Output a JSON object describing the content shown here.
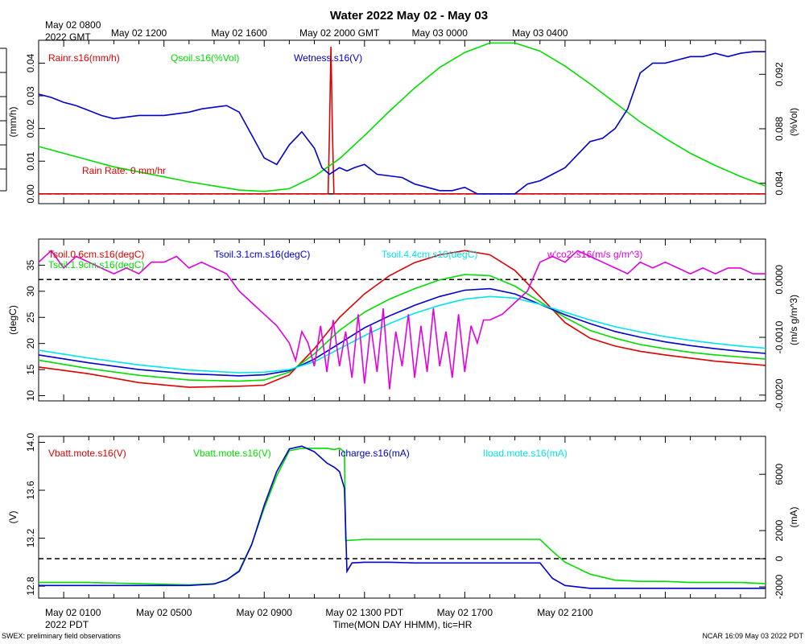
{
  "title": "Water 2022 May 02 - May 03",
  "top_axis": {
    "origin_label_1": "May 02 0800",
    "origin_label_2": "2022 GMT",
    "ticks": [
      "May 02 1200",
      "May 02 1600",
      "May 02 2000 GMT",
      "May 03 0000",
      "May 03 0400"
    ]
  },
  "bottom_axis": {
    "origin_label_1": "May 02 0100",
    "origin_label_2": "2022 PDT",
    "ticks": [
      "May 02 0500",
      "May 02 0900",
      "May 02 1300 PDT",
      "May 02 1700",
      "May 02 2100"
    ],
    "xlabel": "Time(MON DAY HHMM), tic=HR"
  },
  "footer_left": "SWEX: preliminary field observations",
  "footer_right": "NCAR 16:09 May 03 2022 PDT",
  "colors": {
    "red": "#dd0000",
    "green": "#00dd00",
    "blue": "#0000cc",
    "cyan": "#00e5ee",
    "magenta": "#e000e0"
  },
  "chart_data": [
    {
      "type": "line",
      "panel": "top",
      "x_units": "hours since May 02 0100 PDT",
      "xlim": [
        -1,
        28
      ],
      "left_axis": {
        "label": "(mm/h)",
        "ylim": [
          -0.003,
          0.047
        ],
        "ticks": [
          "0.00",
          "0.01",
          "0.02",
          "0.03",
          "0.04"
        ]
      },
      "right_axis": {
        "label": "(%Vol)",
        "ylim": [
          0.0825,
          0.0945
        ],
        "ticks": [
          "0.084",
          "0.088",
          "0.092"
        ]
      },
      "legend": [
        "Rainr.s16(mm/h)",
        "Qsoil.s16(%Vol)",
        "Wetness.s16(V)"
      ],
      "annotation": "Rain Rate: 0 mm/hr",
      "reference_line_left": 0,
      "series": [
        {
          "name": "Rainr.s16(mm/h)",
          "axis": "left",
          "color": "red",
          "x": [
            -1,
            10.55,
            10.6,
            10.66,
            10.72,
            10.78,
            28
          ],
          "y": [
            0,
            0,
            0.018,
            0.045,
            0.02,
            0,
            0
          ]
        },
        {
          "name": "Qsoil.s16(%Vol)",
          "axis": "right",
          "color": "green",
          "x": [
            -1,
            2,
            5,
            7,
            8,
            9,
            10,
            11,
            12,
            13,
            14,
            15,
            16,
            17,
            18,
            19,
            20,
            21,
            22,
            23,
            24,
            25,
            26,
            27,
            28
          ],
          "y": [
            0.0867,
            0.0852,
            0.0841,
            0.0835,
            0.0834,
            0.0836,
            0.0845,
            0.0858,
            0.0875,
            0.0893,
            0.091,
            0.0925,
            0.0936,
            0.0943,
            0.0943,
            0.0937,
            0.0926,
            0.0913,
            0.0899,
            0.0885,
            0.0873,
            0.0862,
            0.0853,
            0.0845,
            0.0838
          ]
        },
        {
          "name": "Wetness.s16(V)",
          "axis": "left",
          "color": "blue",
          "x": [
            -1,
            -0.5,
            0,
            0.5,
            1,
            1.5,
            2,
            3,
            4,
            5,
            5.5,
            6,
            6.5,
            7,
            7.5,
            8,
            8.5,
            9,
            9.5,
            10,
            10.3,
            10.6,
            11,
            11.3,
            11.6,
            12,
            12.5,
            13,
            13.5,
            14,
            14.5,
            15,
            15.5,
            16,
            16.5,
            17,
            17.5,
            18,
            18.5,
            19,
            19.5,
            20,
            20.5,
            21,
            21.5,
            22,
            22.5,
            23,
            23.5,
            24,
            24.5,
            25,
            25.5,
            26,
            26.5,
            27,
            27.5,
            28
          ],
          "y": [
            0.0305,
            0.0295,
            0.028,
            0.027,
            0.0255,
            0.024,
            0.023,
            0.024,
            0.024,
            0.025,
            0.026,
            0.0265,
            0.027,
            0.025,
            0.018,
            0.011,
            0.009,
            0.015,
            0.019,
            0.014,
            0.008,
            0.006,
            0.008,
            0.007,
            0.008,
            0.009,
            0.006,
            0.0055,
            0.005,
            0.003,
            0.002,
            0.001,
            0.001,
            0.002,
            0.0,
            0.0,
            0.0,
            0.0,
            0.003,
            0.004,
            0.006,
            0.008,
            0.012,
            0.016,
            0.017,
            0.02,
            0.026,
            0.037,
            0.04,
            0.04,
            0.041,
            0.042,
            0.042,
            0.043,
            0.042,
            0.043,
            0.0435,
            0.0435
          ]
        }
      ]
    },
    {
      "type": "line",
      "panel": "middle",
      "x_units": "hours since May 02 0100 PDT",
      "xlim": [
        -1,
        28
      ],
      "left_axis": {
        "label": "(degC)",
        "ylim": [
          9,
          40
        ],
        "ticks": [
          "10",
          "15",
          "20",
          "25",
          "30",
          "35"
        ]
      },
      "right_axis": {
        "label": "(m/s g/m^3)",
        "ylim": [
          -0.0021,
          0.0007
        ],
        "ticks": [
          "-0.0020",
          "-0.0010",
          "0.0000"
        ]
      },
      "legend": [
        "Tsoil.0.6cm.s16(degC)",
        "Tsoil.1.9cm.s16(degC)",
        "Tsoil.3.1cm.s16(degC)",
        "Tsoil.4.4cm.s16(degC)",
        "w'co2'.s16(m/s g/m^3)"
      ],
      "reference_line_right": 0,
      "series": [
        {
          "name": "Tsoil.0.6cm.s16(degC)",
          "axis": "left",
          "color": "red",
          "x": [
            -1,
            1,
            3,
            5,
            7,
            8,
            9,
            10,
            11,
            12,
            13,
            14,
            15,
            16,
            17,
            18,
            19,
            20,
            21,
            22,
            23,
            24,
            25,
            26,
            27,
            28
          ],
          "y": [
            15.5,
            14.2,
            12.5,
            11.6,
            11.8,
            12.0,
            14.0,
            19.0,
            25.0,
            29.5,
            33.0,
            35.5,
            37.0,
            37.8,
            37.0,
            34.0,
            29.0,
            24.0,
            21.0,
            19.5,
            18.5,
            17.8,
            17.2,
            16.6,
            16.2,
            15.8
          ]
        },
        {
          "name": "Tsoil.1.9cm.s16(degC)",
          "axis": "left",
          "color": "green",
          "x": [
            -1,
            1,
            3,
            5,
            7,
            8,
            9,
            10,
            11,
            12,
            13,
            14,
            15,
            16,
            17,
            18,
            19,
            20,
            21,
            22,
            23,
            24,
            25,
            26,
            27,
            28
          ],
          "y": [
            16.8,
            15.2,
            13.9,
            13.0,
            12.8,
            13.0,
            14.5,
            18.0,
            22.5,
            26.0,
            28.5,
            30.5,
            32.2,
            33.2,
            33.0,
            31.0,
            28.0,
            25.0,
            22.5,
            21.0,
            19.8,
            19.0,
            18.3,
            17.8,
            17.4,
            17.0
          ]
        },
        {
          "name": "Tsoil.3.1cm.s16(degC)",
          "axis": "left",
          "color": "blue",
          "x": [
            -1,
            1,
            3,
            5,
            7,
            8,
            9,
            10,
            11,
            12,
            13,
            14,
            15,
            16,
            17,
            18,
            19,
            20,
            21,
            22,
            23,
            24,
            25,
            26,
            27,
            28
          ],
          "y": [
            17.8,
            16.3,
            15.0,
            14.2,
            13.8,
            14.0,
            14.8,
            17.0,
            20.0,
            23.0,
            25.3,
            27.3,
            29.0,
            30.2,
            30.5,
            29.5,
            27.5,
            25.5,
            23.8,
            22.3,
            21.2,
            20.3,
            19.6,
            19.0,
            18.5,
            18.1
          ]
        },
        {
          "name": "Tsoil.4.4cm.s16(degC)",
          "axis": "left",
          "color": "cyan",
          "x": [
            -1,
            1,
            3,
            5,
            7,
            8,
            9,
            10,
            11,
            12,
            13,
            14,
            15,
            16,
            17,
            18,
            19,
            20,
            21,
            22,
            23,
            24,
            25,
            26,
            27,
            28
          ],
          "y": [
            18.7,
            17.2,
            15.9,
            14.9,
            14.4,
            14.5,
            15.0,
            16.5,
            19.0,
            21.5,
            23.8,
            25.8,
            27.3,
            28.5,
            29.0,
            28.7,
            27.5,
            26.0,
            24.5,
            23.2,
            22.2,
            21.3,
            20.6,
            20.0,
            19.5,
            19.1
          ]
        },
        {
          "name": "w'co2'.s16(m/s g/m^3)",
          "axis": "right",
          "color": "magenta",
          "x": [
            -1,
            -0.5,
            0,
            0.5,
            1,
            1.5,
            2,
            2.5,
            3,
            3.5,
            4,
            4.5,
            5,
            5.5,
            6,
            6.5,
            7,
            7.5,
            8,
            8.5,
            9,
            9.25,
            9.5,
            9.75,
            10,
            10.25,
            10.5,
            10.75,
            11,
            11.25,
            11.5,
            11.75,
            12,
            12.25,
            12.5,
            12.75,
            13,
            13.25,
            13.5,
            13.75,
            14,
            14.25,
            14.5,
            14.75,
            15,
            15.25,
            15.5,
            15.75,
            16,
            16.25,
            16.5,
            16.75,
            17,
            17.5,
            18,
            18.5,
            19,
            19.5,
            20,
            20.5,
            21,
            21.5,
            22,
            22.5,
            23,
            23.5,
            24,
            24.5,
            25,
            25.5,
            26,
            26.5,
            27,
            27.5,
            28
          ],
          "y": [
            0.0003,
            0.0005,
            0.0002,
            0.0004,
            0.0003,
            0.0002,
            0.0001,
            0.0002,
            0.0001,
            0.0003,
            0.0003,
            0.0004,
            0.0002,
            0.0003,
            0.0002,
            0.0001,
            -0.0002,
            -0.0004,
            -0.0006,
            -0.0008,
            -0.0011,
            -0.0014,
            -0.0009,
            -0.0011,
            -0.0015,
            -0.0008,
            -0.0016,
            -0.0007,
            -0.0015,
            -0.0009,
            -0.0017,
            -0.0006,
            -0.0018,
            -0.0008,
            -0.0016,
            -0.0005,
            -0.0019,
            -0.0009,
            -0.0015,
            -0.0006,
            -0.0017,
            -0.0008,
            -0.0016,
            -0.0005,
            -0.0015,
            -0.0009,
            -0.0017,
            -0.0006,
            -0.0016,
            -0.0008,
            -0.0011,
            -0.0007,
            -0.0007,
            -0.0006,
            -0.0004,
            -0.0002,
            0.0003,
            0.0004,
            0.0003,
            0.0005,
            0.0004,
            0.0003,
            0.0002,
            0.0001,
            0.0003,
            0.0002,
            0.0003,
            0.0002,
            0.0001,
            0.0002,
            0.0001,
            0.0002,
            0.0002,
            0.0001,
            0.0001
          ]
        }
      ]
    },
    {
      "type": "line",
      "panel": "bottom",
      "x_units": "hours since May 02 0100 PDT",
      "xlim": [
        -1,
        28
      ],
      "left_axis": {
        "label": "(V)",
        "ylim": [
          12.7,
          14.05
        ],
        "ticks": [
          "12.8",
          "13.2",
          "13.6",
          "14.0"
        ]
      },
      "right_axis": {
        "label": "(mA)",
        "ylim": [
          -2800,
          8700
        ],
        "ticks": [
          "-2000",
          "0",
          "2000",
          "6000"
        ]
      },
      "legend": [
        "Vbatt.mote.s16(V)",
        "Vbatt.mote.s16(V)",
        "Icharge.s16(mA)",
        "Iload.mote.s16(mA)"
      ],
      "reference_line_right": 0,
      "series": [
        {
          "name": "Vbatt.mote.s16(V)",
          "axis": "left",
          "color": "green",
          "x": [
            -1,
            1,
            3,
            5,
            6,
            6.5,
            7,
            7.5,
            8,
            8.5,
            9,
            9.5,
            10,
            10.5,
            10.8,
            11,
            11.2,
            11.25,
            12,
            13,
            14,
            15,
            16,
            17,
            18,
            18.5,
            19,
            19.5,
            20,
            21,
            22,
            23,
            24,
            25,
            26,
            27,
            28
          ],
          "y": [
            12.83,
            12.83,
            12.82,
            12.81,
            12.82,
            12.85,
            12.93,
            13.15,
            13.45,
            13.72,
            13.93,
            13.95,
            13.95,
            13.95,
            13.94,
            13.95,
            13.92,
            13.18,
            13.19,
            13.19,
            13.19,
            13.19,
            13.19,
            13.19,
            13.19,
            13.19,
            13.19,
            13.09,
            13.0,
            12.9,
            12.85,
            12.84,
            12.84,
            12.83,
            12.83,
            12.83,
            12.82
          ]
        },
        {
          "name": "Icharge.s16(mA)",
          "axis": "right",
          "color": "blue",
          "x": [
            -1,
            1,
            3,
            5,
            6,
            6.5,
            7,
            7.5,
            8,
            8.5,
            9,
            9.5,
            10,
            10.5,
            10.8,
            11,
            11.2,
            11.3,
            11.5,
            12,
            13,
            14,
            15,
            16,
            17,
            18,
            18.5,
            19,
            19.5,
            20,
            21,
            22,
            23,
            24,
            25,
            26,
            27,
            28
          ],
          "y": [
            -1900,
            -1900,
            -1900,
            -1900,
            -1800,
            -1500,
            -900,
            1000,
            3800,
            6200,
            7800,
            8000,
            7600,
            6800,
            6500,
            6200,
            5000,
            -900,
            -300,
            -250,
            -250,
            -300,
            -300,
            -300,
            -300,
            -300,
            -300,
            -300,
            -1400,
            -1900,
            -2100,
            -2100,
            -2100,
            -2100,
            -2100,
            -2100,
            -2100,
            -2100
          ]
        }
      ]
    }
  ]
}
